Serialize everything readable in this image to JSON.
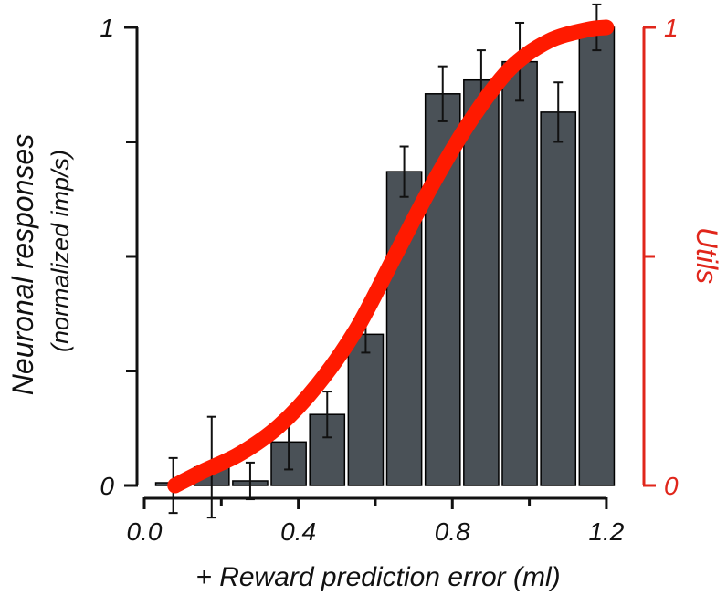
{
  "chart_data": {
    "type": "bar",
    "xlabel": "+ Reward prediction error  (ml)",
    "ylabel": "Neuronal responses",
    "ylabel_sub": "(normalized imp/s)",
    "y2label": "Utils",
    "x_ticks": [
      "0.0",
      "0.4",
      "0.8",
      "1.2"
    ],
    "x_tick_values": [
      0.0,
      0.4,
      0.8,
      1.2
    ],
    "xlim": [
      0.0,
      1.25
    ],
    "ylim": [
      0,
      1
    ],
    "y_tick_labels": [
      "0",
      "1"
    ],
    "y_minor_ticks": [
      0.25,
      0.5,
      0.75
    ],
    "y2lim": [
      0,
      1
    ],
    "y2_tick_labels": [
      "0",
      "1"
    ],
    "y2_minor_ticks": [
      0.5
    ],
    "bar_color": "#4a5157",
    "curve_color": "#ff1a00",
    "axis2_color": "#e0261b",
    "bars": [
      {
        "x": 0.075,
        "value": 0.0,
        "err": 0.06
      },
      {
        "x": 0.175,
        "value": 0.04,
        "err": 0.11
      },
      {
        "x": 0.275,
        "value": 0.01,
        "err": 0.04
      },
      {
        "x": 0.375,
        "value": 0.095,
        "err": 0.06
      },
      {
        "x": 0.475,
        "value": 0.155,
        "err": 0.05
      },
      {
        "x": 0.575,
        "value": 0.33,
        "err": 0.04
      },
      {
        "x": 0.675,
        "value": 0.685,
        "err": 0.055
      },
      {
        "x": 0.775,
        "value": 0.855,
        "err": 0.06
      },
      {
        "x": 0.875,
        "value": 0.885,
        "err": 0.065
      },
      {
        "x": 0.975,
        "value": 0.925,
        "err": 0.085
      },
      {
        "x": 1.075,
        "value": 0.815,
        "err": 0.065
      },
      {
        "x": 1.175,
        "value": 1.0,
        "err": 0.05
      }
    ],
    "utility_curve": {
      "x": [
        0.08,
        0.15,
        0.25,
        0.35,
        0.45,
        0.55,
        0.65,
        0.75,
        0.85,
        0.95,
        1.05,
        1.15,
        1.2
      ],
      "y": [
        0.0,
        0.03,
        0.07,
        0.13,
        0.22,
        0.34,
        0.5,
        0.66,
        0.8,
        0.91,
        0.97,
        0.995,
        1.0
      ]
    }
  }
}
